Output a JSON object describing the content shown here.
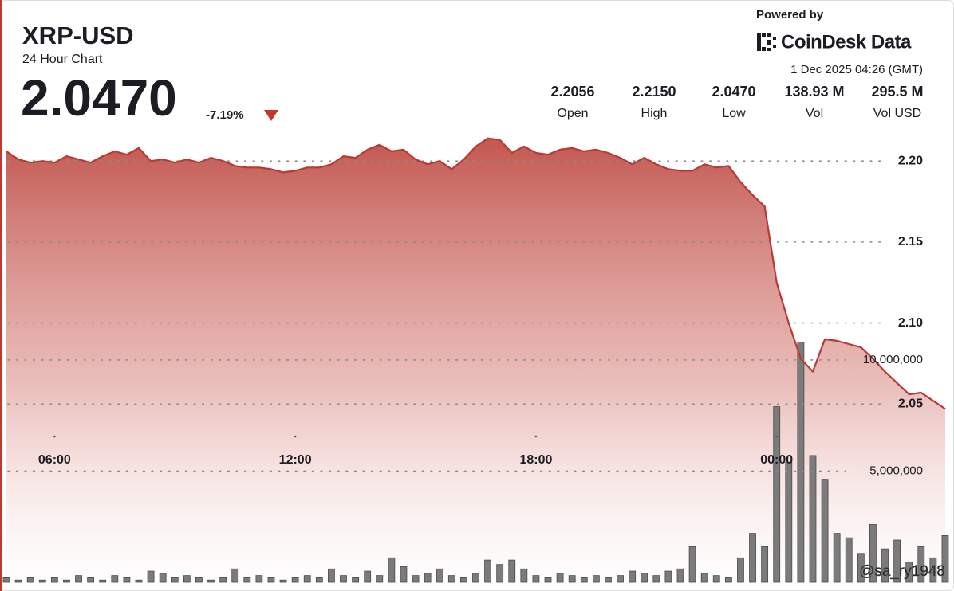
{
  "header": {
    "title": "XRP-USD",
    "subtitle": "24 Hour Chart",
    "price": "2.0470",
    "change": "-7.19%",
    "powered_by": "Powered by",
    "brand": "CoinDesk Data",
    "timestamp": "1 Dec 2025 04:26 (GMT)",
    "stats": [
      {
        "value": "2.2056",
        "label": "Open"
      },
      {
        "value": "2.2150",
        "label": "High"
      },
      {
        "value": "2.0470",
        "label": "Low"
      },
      {
        "value": "138.93 M",
        "label": "Vol"
      },
      {
        "value": "295.5 M",
        "label": "Vol USD"
      }
    ],
    "watermark": "@sa_ry1948"
  },
  "chart_data": {
    "type": "line",
    "x": [
      4.8,
      5.1,
      5.4,
      5.7,
      6.0,
      6.3,
      6.6,
      6.9,
      7.2,
      7.5,
      7.8,
      8.1,
      8.4,
      8.7,
      9.0,
      9.3,
      9.6,
      9.9,
      10.2,
      10.5,
      10.8,
      11.1,
      11.4,
      11.7,
      12.0,
      12.3,
      12.6,
      12.9,
      13.2,
      13.5,
      13.8,
      14.1,
      14.4,
      14.7,
      15.0,
      15.3,
      15.6,
      15.9,
      16.2,
      16.5,
      16.8,
      17.1,
      17.4,
      17.7,
      18.0,
      18.3,
      18.6,
      18.9,
      19.2,
      19.5,
      19.8,
      20.1,
      20.4,
      20.7,
      21.0,
      21.3,
      21.6,
      21.9,
      22.2,
      22.5,
      22.8,
      23.1,
      23.4,
      23.7,
      24.0,
      24.3,
      24.6,
      24.9,
      25.2,
      25.5,
      25.8,
      26.1,
      26.4,
      26.7,
      27.0,
      27.3,
      27.6,
      27.9,
      28.2
    ],
    "series": [
      {
        "color": "#b83a32",
        "values": [
          2.206,
          2.201,
          2.199,
          2.2,
          2.199,
          2.203,
          2.201,
          2.199,
          2.203,
          2.206,
          2.204,
          2.208,
          2.2,
          2.201,
          2.199,
          2.201,
          2.199,
          2.202,
          2.2,
          2.197,
          2.196,
          2.196,
          2.195,
          2.193,
          2.194,
          2.196,
          2.196,
          2.198,
          2.203,
          2.202,
          2.207,
          2.21,
          2.206,
          2.207,
          2.201,
          2.198,
          2.2,
          2.195,
          2.201,
          2.209,
          2.214,
          2.213,
          2.205,
          2.209,
          2.205,
          2.204,
          2.207,
          2.208,
          2.206,
          2.207,
          2.205,
          2.202,
          2.198,
          2.202,
          2.198,
          2.195,
          2.194,
          2.194,
          2.198,
          2.196,
          2.197,
          2.187,
          2.179,
          2.172,
          2.125,
          2.1,
          2.078,
          2.07,
          2.09,
          2.089,
          2.087,
          2.085,
          2.078,
          2.07,
          2.063,
          2.056,
          2.057,
          2.052,
          2.047
        ]
      },
      {
        "type": "bar",
        "axis": "y2",
        "color": "#7b7b7b",
        "values": [
          200000,
          100000,
          200000,
          100000,
          200000,
          100000,
          300000,
          200000,
          100000,
          300000,
          200000,
          100000,
          500000,
          400000,
          200000,
          300000,
          200000,
          100000,
          200000,
          600000,
          200000,
          300000,
          200000,
          100000,
          200000,
          300000,
          200000,
          600000,
          300000,
          200000,
          500000,
          300000,
          1100000,
          700000,
          300000,
          400000,
          600000,
          300000,
          200000,
          400000,
          1000000,
          800000,
          1000000,
          600000,
          300000,
          200000,
          400000,
          300000,
          200000,
          300000,
          200000,
          300000,
          500000,
          400000,
          300000,
          500000,
          600000,
          1600000,
          400000,
          300000,
          200000,
          1100000,
          2200000,
          1600000,
          7900000,
          5400000,
          10800000,
          5700000,
          4600000,
          2200000,
          2000000,
          1300000,
          2600000,
          1500000,
          1900000,
          900000,
          1600000,
          1100000,
          2100000
        ]
      }
    ],
    "xlim": [
      4.8,
      28.3
    ],
    "xticks": [
      {
        "value": 6,
        "label": "06:00"
      },
      {
        "value": 12,
        "label": "12:00"
      },
      {
        "value": 18,
        "label": "18:00"
      },
      {
        "value": 24,
        "label": "00:00"
      }
    ],
    "ylim": [
      1.94,
      2.235
    ],
    "yticks": [
      {
        "value": 2.05,
        "label": "2.05"
      },
      {
        "value": 2.1,
        "label": "2.10"
      },
      {
        "value": 2.15,
        "label": "2.15"
      },
      {
        "value": 2.2,
        "label": "2.20"
      }
    ],
    "y2lim": [
      0,
      21500000
    ],
    "y2ticks": [
      {
        "value": 5000000,
        "label": "5,000,000"
      },
      {
        "value": 10000000,
        "label": "10,000,000"
      }
    ],
    "grid": true
  }
}
